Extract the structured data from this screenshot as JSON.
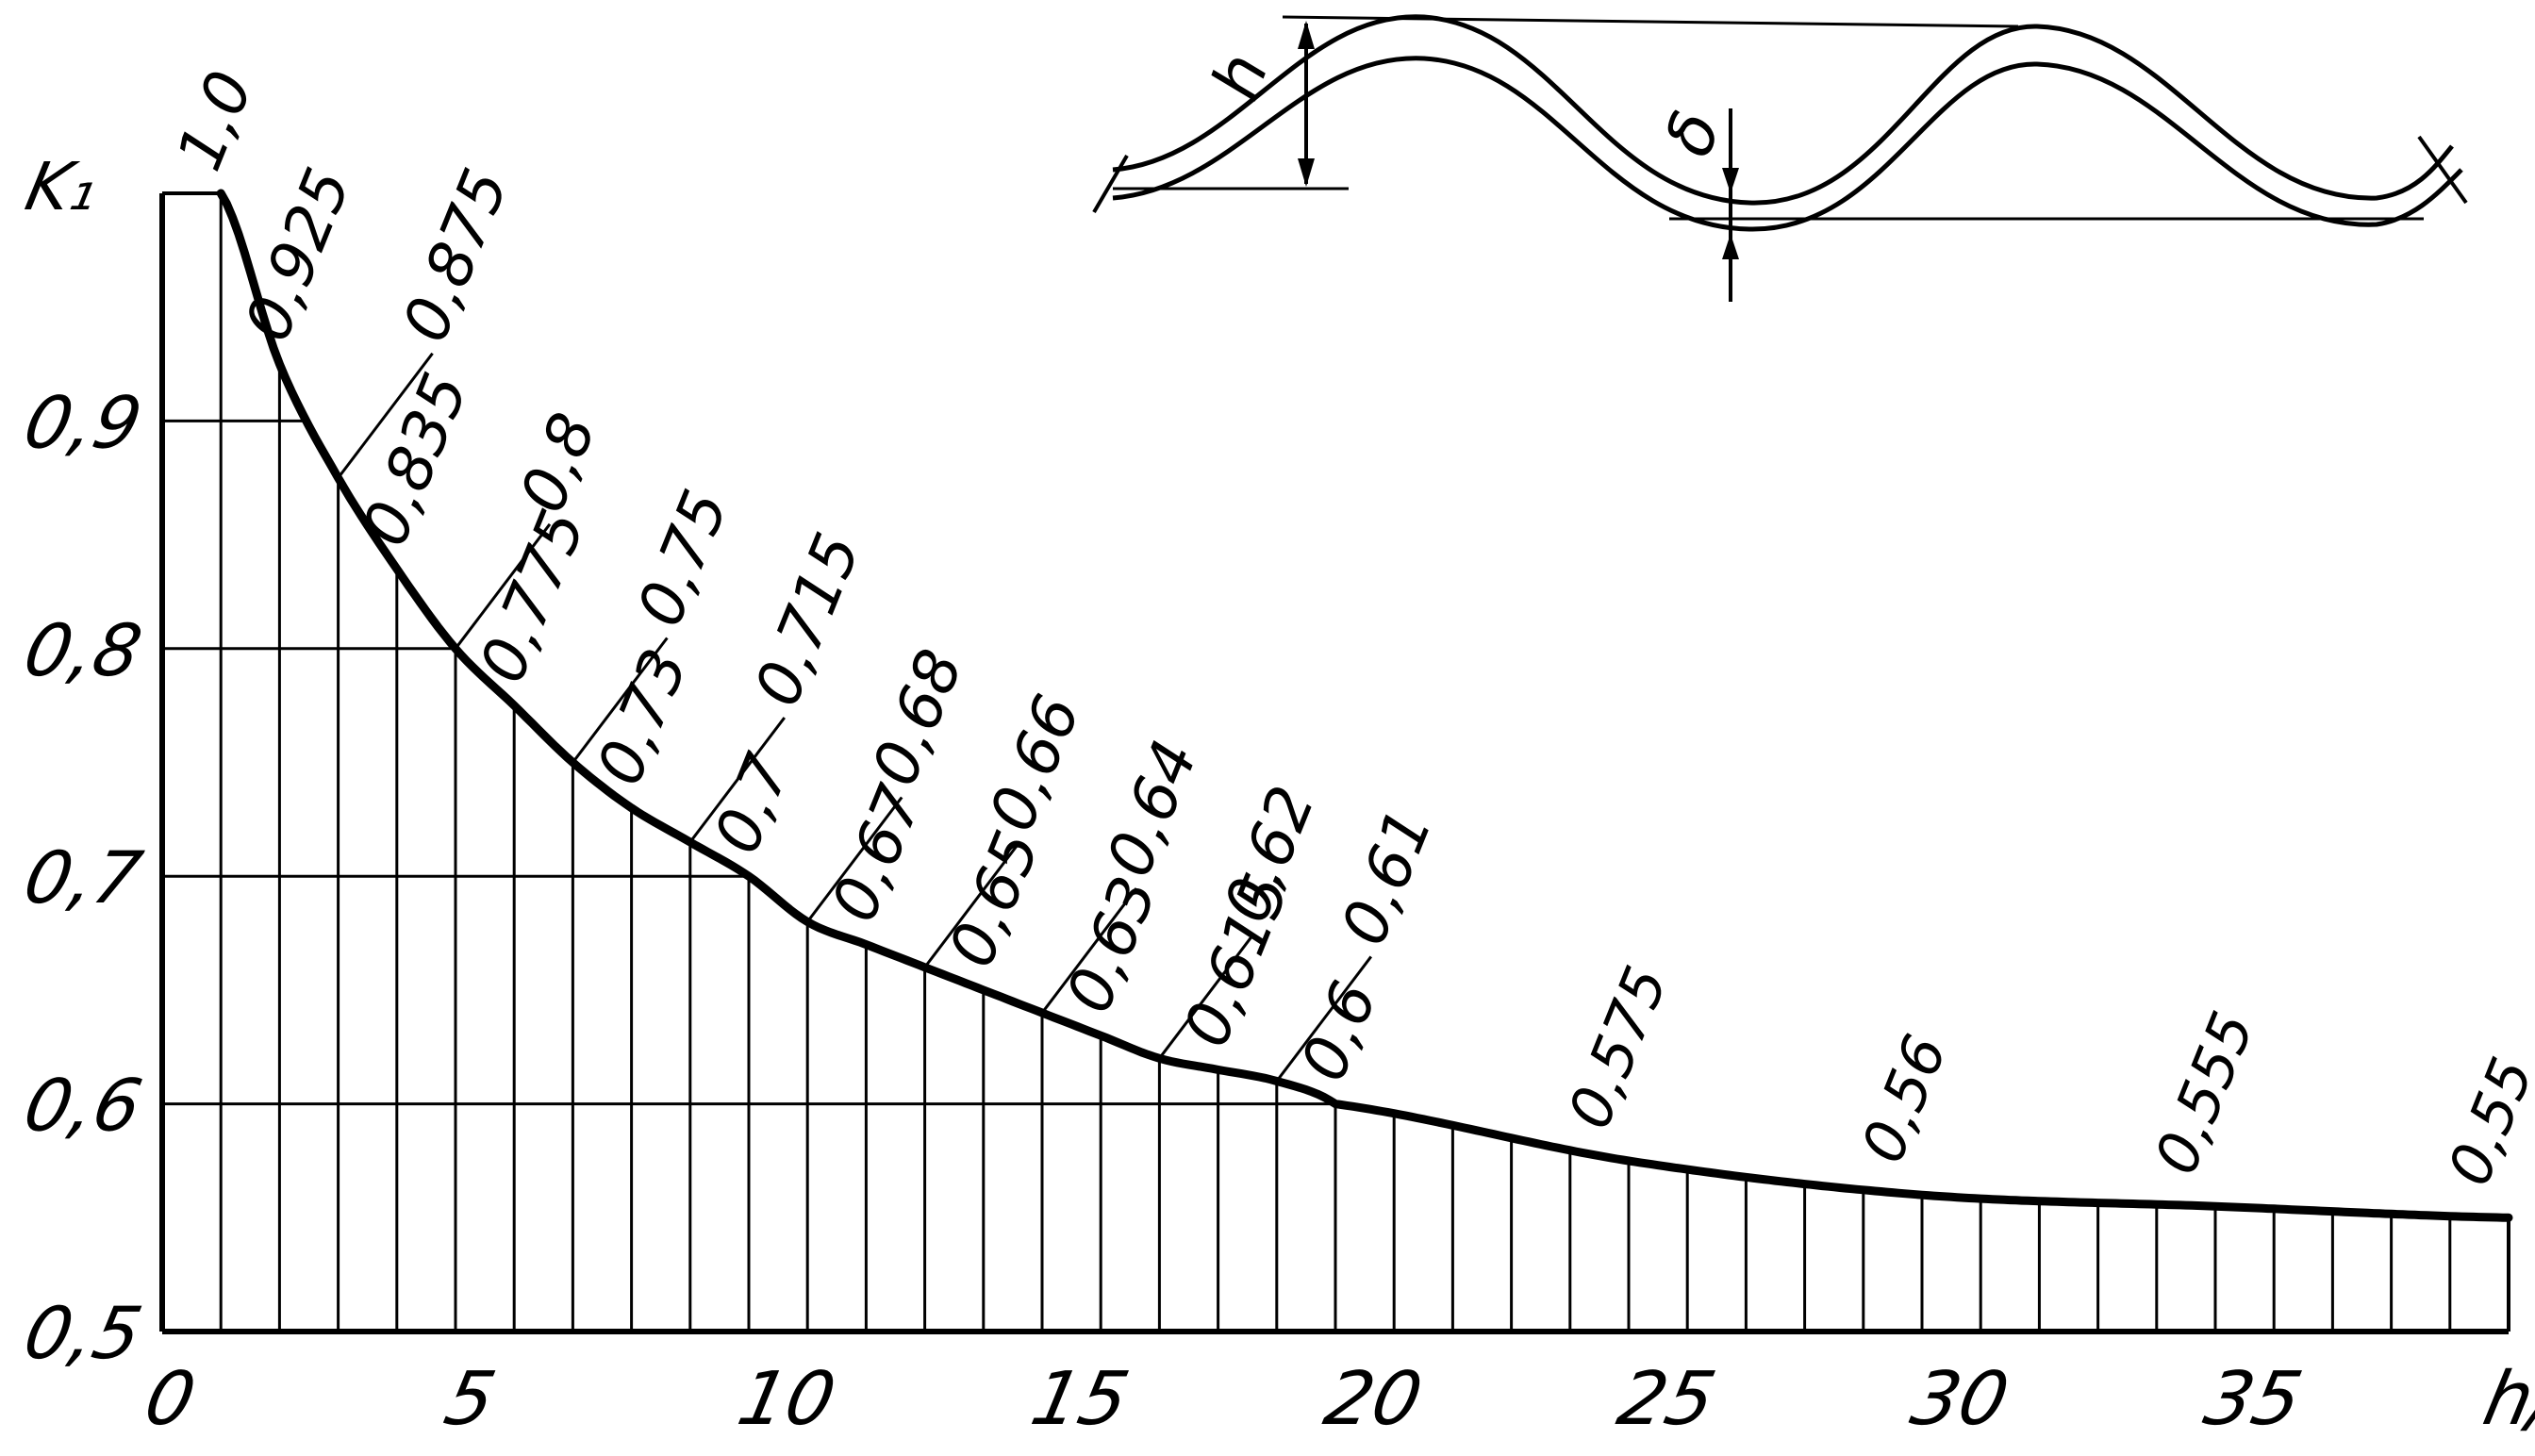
{
  "chart_data": {
    "type": "line",
    "title": "",
    "xlabel": "h/δ",
    "ylabel": "K₁",
    "xlim": [
      0,
      40
    ],
    "ylim": [
      0.5,
      1.0
    ],
    "grid": true,
    "x_tick_labels": [
      "0",
      "5",
      "10",
      "15",
      "20",
      "25",
      "30",
      "35",
      "h/δ"
    ],
    "y_tick_labels": [
      "0,5",
      "0,6",
      "0,7",
      "0,8",
      "0,9"
    ],
    "series": [
      {
        "x": [
          1,
          2,
          3,
          4,
          5,
          6,
          7,
          8,
          9,
          10,
          11,
          12,
          13,
          14,
          15,
          16,
          17,
          18,
          19,
          20,
          25,
          30,
          35,
          40
        ],
        "values": [
          1.0,
          0.925,
          0.875,
          0.835,
          0.8,
          0.775,
          0.75,
          0.73,
          0.715,
          0.7,
          0.68,
          0.67,
          0.66,
          0.65,
          0.64,
          0.63,
          0.62,
          0.615,
          0.61,
          0.6,
          0.575,
          0.56,
          0.555,
          0.55
        ],
        "labels": [
          "1,0",
          "0,925",
          "0,875",
          "0,835",
          "0,8",
          "0,775",
          "0,75",
          "0,73",
          "0,715",
          "0,7",
          "0,68",
          "0,67",
          "0,66",
          "0,65",
          "0,64",
          "0,63",
          "0,62",
          "0,615",
          "0,61",
          "0,6",
          "0,575",
          "0,56",
          "0,555",
          "0,55"
        ]
      }
    ]
  },
  "inset": {
    "h_label": "h",
    "delta_label": "δ"
  }
}
